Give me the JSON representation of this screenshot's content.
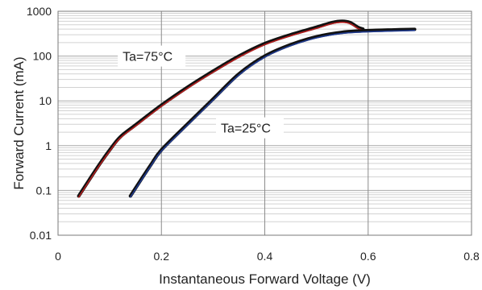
{
  "chart_data": {
    "type": "line",
    "title": "",
    "xlabel": "Instantaneous Forward Voltage (V)",
    "ylabel": "Forward Current (mA)",
    "x_scale": "linear",
    "y_scale": "log",
    "xlim": [
      0,
      0.8
    ],
    "ylim": [
      0.01,
      1000
    ],
    "x_ticks": [
      0,
      0.2,
      0.4,
      0.6,
      0.8
    ],
    "x_tick_labels": [
      "0",
      "0.2",
      "0.4",
      "0.6",
      "0.8"
    ],
    "y_ticks": [
      0.01,
      0.1,
      1,
      10,
      100,
      1000
    ],
    "y_tick_labels": [
      "0.01",
      "0.1",
      "1",
      "10",
      "100",
      "1000"
    ],
    "grid": true,
    "legend": "none",
    "series": [
      {
        "label": "Ta=75°C",
        "color": "#111111",
        "highlight_color": "#b41e1e",
        "points": [
          [
            0.04,
            0.075
          ],
          [
            0.06,
            0.17
          ],
          [
            0.08,
            0.38
          ],
          [
            0.1,
            0.8
          ],
          [
            0.12,
            1.55
          ],
          [
            0.15,
            2.9
          ],
          [
            0.2,
            8.0
          ],
          [
            0.25,
            20
          ],
          [
            0.3,
            46
          ],
          [
            0.35,
            100
          ],
          [
            0.4,
            190
          ],
          [
            0.45,
            300
          ],
          [
            0.5,
            440
          ],
          [
            0.53,
            560
          ],
          [
            0.55,
            600
          ],
          [
            0.565,
            560
          ],
          [
            0.58,
            440
          ],
          [
            0.59,
            400
          ]
        ]
      },
      {
        "label": "Ta=25°C",
        "color": "#111111",
        "highlight_color": "#1f3a8f",
        "points": [
          [
            0.14,
            0.075
          ],
          [
            0.16,
            0.17
          ],
          [
            0.18,
            0.38
          ],
          [
            0.2,
            0.8
          ],
          [
            0.25,
            3.0
          ],
          [
            0.3,
            11
          ],
          [
            0.35,
            40
          ],
          [
            0.4,
            100
          ],
          [
            0.45,
            180
          ],
          [
            0.5,
            270
          ],
          [
            0.55,
            340
          ],
          [
            0.6,
            370
          ],
          [
            0.65,
            385
          ],
          [
            0.69,
            395
          ]
        ]
      }
    ],
    "annotations": [
      {
        "text": "Ta=75°C",
        "x": 0.125,
        "y": 100
      },
      {
        "text": "Ta=25°C",
        "x": 0.315,
        "y": 2.5
      }
    ]
  }
}
